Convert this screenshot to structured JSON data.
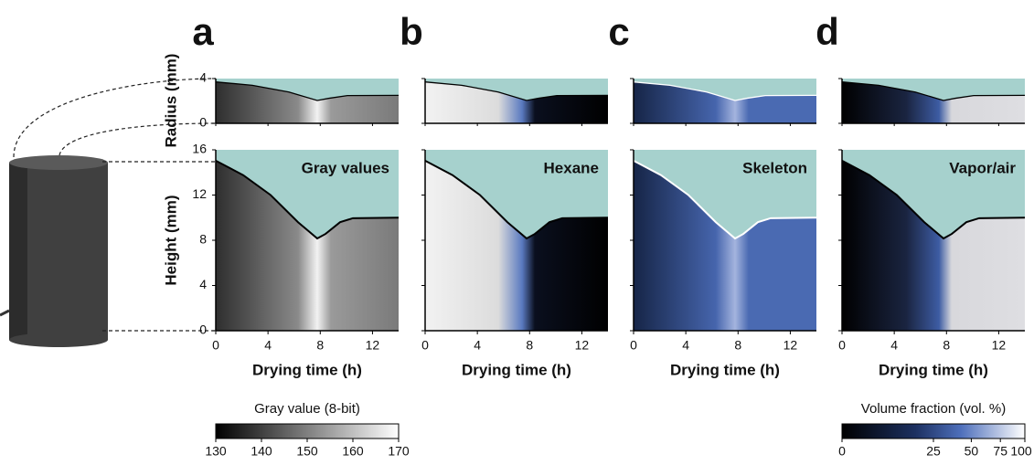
{
  "figure": {
    "panels": [
      {
        "letter": "a",
        "title": "Gray values"
      },
      {
        "letter": "b",
        "title": "Hexane"
      },
      {
        "letter": "c",
        "title": "Skeleton"
      },
      {
        "letter": "d",
        "title": "Vapor/air"
      }
    ],
    "x_axis": {
      "label": "Drying time (h)",
      "xlim": [
        0,
        14
      ],
      "xticks": [
        0,
        4,
        8,
        12
      ]
    },
    "radius_axis": {
      "label": "Radius (mm)",
      "ylim": [
        0,
        4
      ],
      "yticks": [
        0,
        4
      ]
    },
    "height_axis": {
      "label": "Height (mm)",
      "ylim": [
        0,
        16
      ],
      "yticks": [
        0,
        4,
        8,
        12,
        16
      ]
    },
    "colorbars": [
      {
        "label": "Gray value (8-bit)",
        "lim": [
          130,
          170
        ],
        "ticks": [
          130,
          140,
          150,
          160,
          170
        ],
        "scale": "linear"
      },
      {
        "label": "Volume fraction (vol. %)",
        "lim": [
          0,
          100
        ],
        "ticks": [
          0,
          25,
          50,
          75,
          100
        ],
        "scale": "sqrt"
      }
    ]
  }
}
